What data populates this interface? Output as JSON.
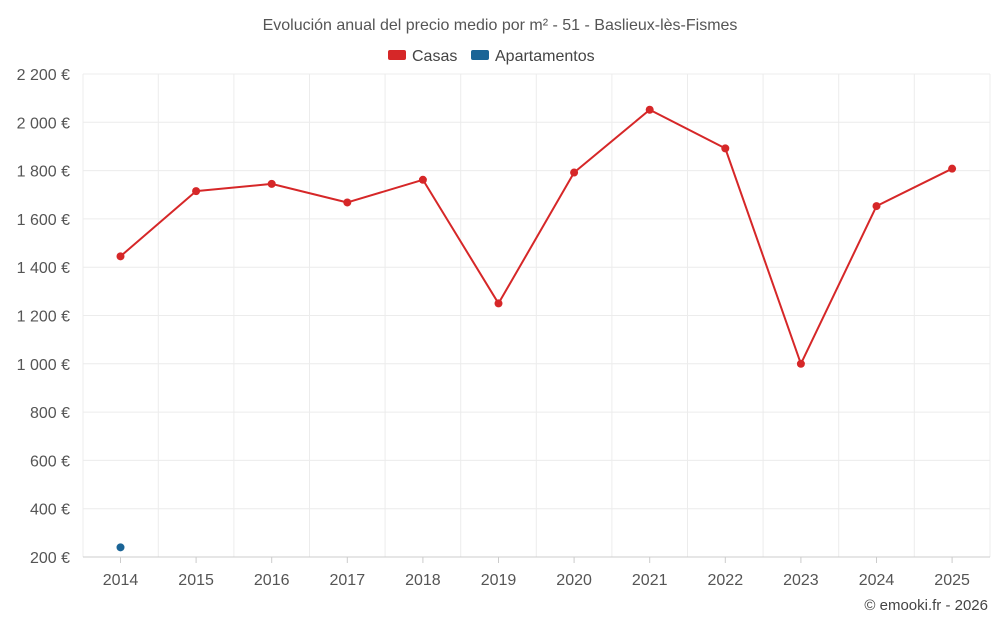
{
  "chart_data": {
    "type": "line",
    "title": "Evolución anual del precio medio por m² - 51 - Baslieux-lès-Fismes",
    "categories": [
      "2014",
      "2015",
      "2016",
      "2017",
      "2018",
      "2019",
      "2020",
      "2021",
      "2022",
      "2023",
      "2024",
      "2025"
    ],
    "series": [
      {
        "name": "Casas",
        "color": "#d62728",
        "values": [
          1445,
          1715,
          1745,
          1668,
          1762,
          1250,
          1792,
          2052,
          1892,
          1000,
          1653,
          1808
        ]
      },
      {
        "name": "Apartamentos",
        "color": "#1a6496",
        "values": [
          240,
          null,
          null,
          null,
          null,
          null,
          null,
          null,
          null,
          null,
          null,
          null
        ]
      }
    ],
    "ylim": [
      200,
      2200
    ],
    "yticks": [
      200,
      400,
      600,
      800,
      1000,
      1200,
      1400,
      1600,
      1800,
      2000,
      2200
    ],
    "ytick_labels": [
      "200 €",
      "400 €",
      "600 €",
      "800 €",
      "1 000 €",
      "1 200 €",
      "1 400 €",
      "1 600 €",
      "1 800 €",
      "2 000 €",
      "2 200 €"
    ],
    "xlabel": "",
    "ylabel": "",
    "grid": true,
    "legend": "top-center"
  },
  "credit": "© emooki.fr - 2026"
}
